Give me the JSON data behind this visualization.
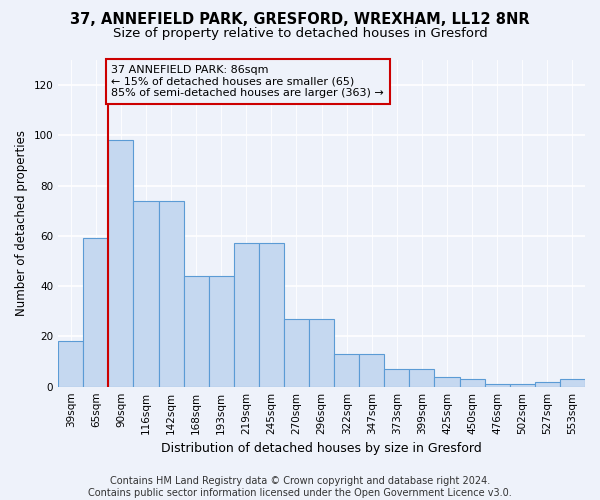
{
  "title1": "37, ANNEFIELD PARK, GRESFORD, WREXHAM, LL12 8NR",
  "title2": "Size of property relative to detached houses in Gresford",
  "xlabel": "Distribution of detached houses by size in Gresford",
  "ylabel": "Number of detached properties",
  "footer1": "Contains HM Land Registry data © Crown copyright and database right 2024.",
  "footer2": "Contains public sector information licensed under the Open Government Licence v3.0.",
  "categories": [
    "39sqm",
    "65sqm",
    "90sqm",
    "116sqm",
    "142sqm",
    "168sqm",
    "193sqm",
    "219sqm",
    "245sqm",
    "270sqm",
    "296sqm",
    "322sqm",
    "347sqm",
    "373sqm",
    "399sqm",
    "425sqm",
    "450sqm",
    "476sqm",
    "502sqm",
    "527sqm",
    "553sqm"
  ],
  "bar_values": [
    18,
    59,
    98,
    74,
    74,
    44,
    44,
    57,
    57,
    27,
    27,
    13,
    13,
    7,
    7,
    4,
    3,
    1,
    1,
    2,
    3
  ],
  "bar_color": "#c5d8f0",
  "bar_edgecolor": "#5b9bd5",
  "vline_color": "#cc0000",
  "annotation_text_line1": "37 ANNEFIELD PARK: 86sqm",
  "annotation_text_line2": "← 15% of detached houses are smaller (65)",
  "annotation_text_line3": "85% of semi-detached houses are larger (363) →",
  "ylim": [
    0,
    130
  ],
  "yticks": [
    0,
    20,
    40,
    60,
    80,
    100,
    120
  ],
  "background_color": "#eef2fa",
  "grid_color": "#ffffff",
  "annotation_fontsize": 8.0,
  "title1_fontsize": 10.5,
  "title2_fontsize": 9.5,
  "xlabel_fontsize": 9.0,
  "ylabel_fontsize": 8.5,
  "tick_fontsize": 7.5,
  "footer_fontsize": 7.0
}
